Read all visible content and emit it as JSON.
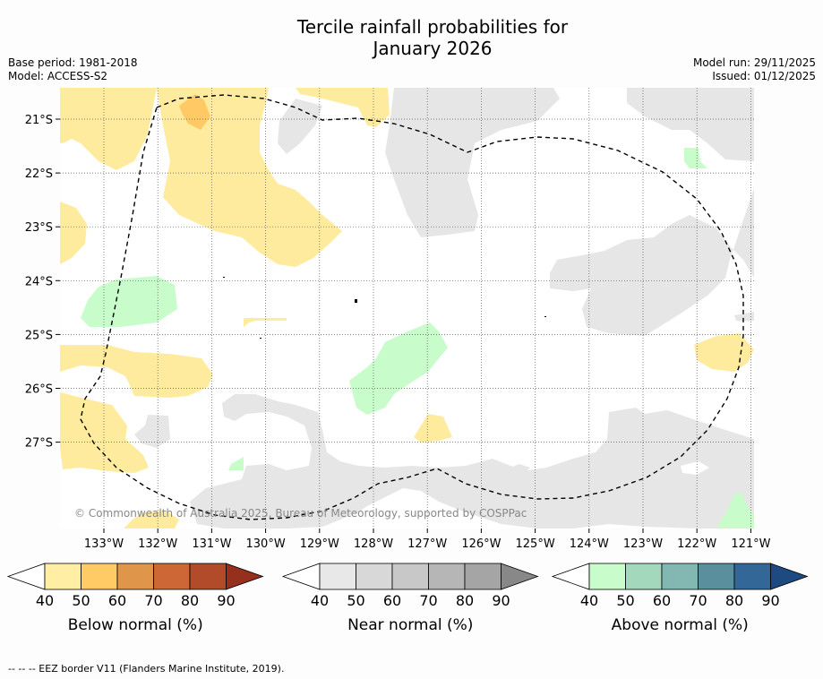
{
  "header": {
    "title_line1": "Tercile rainfall probabilities for",
    "title_line2": "January 2026",
    "base_period": "Base period: 1981-2018",
    "model": "Model: ACCESS-S2",
    "model_run": "Model run: 29/11/2025",
    "issued": "Issued: 01/12/2025"
  },
  "map": {
    "x_ticks": [
      "133°W",
      "132°W",
      "131°W",
      "130°W",
      "129°W",
      "128°W",
      "127°W",
      "126°W",
      "125°W",
      "124°W",
      "123°W",
      "122°W",
      "121°W"
    ],
    "y_ticks": [
      "21°S",
      "22°S",
      "23°S",
      "24°S",
      "25°S",
      "26°S",
      "27°S"
    ],
    "copyright": "© Commonwealth of Australia 2025, Bureau of Meteorology, supported by COSPPac",
    "colors": {
      "below40": "#ffeb9e",
      "below50": "#ffc966",
      "near40": "#e6e6e6",
      "above40": "#c9fccb",
      "eez": "#000000"
    }
  },
  "colorbars": [
    {
      "label": "Below normal (%)",
      "ticks": [
        "40",
        "50",
        "60",
        "70",
        "80",
        "90"
      ],
      "colors": [
        "#ffeea3",
        "#fecb64",
        "#e0964a",
        "#cd6736",
        "#b14b2a",
        "#96301c"
      ]
    },
    {
      "label": "Near normal (%)",
      "ticks": [
        "40",
        "50",
        "60",
        "70",
        "80",
        "90"
      ],
      "colors": [
        "#e8e8e8",
        "#d8d8d8",
        "#c8c8c8",
        "#b6b6b6",
        "#a5a5a5",
        "#888888"
      ]
    },
    {
      "label": "Above normal (%)",
      "ticks": [
        "40",
        "50",
        "60",
        "70",
        "80",
        "90"
      ],
      "colors": [
        "#c9fccb",
        "#a4d8bc",
        "#83b8b2",
        "#5a8f9d",
        "#336797",
        "#1d4a80"
      ]
    }
  ],
  "footer": "--  --  -- EEZ border V11 (Flanders Marine Institute, 2019)."
}
